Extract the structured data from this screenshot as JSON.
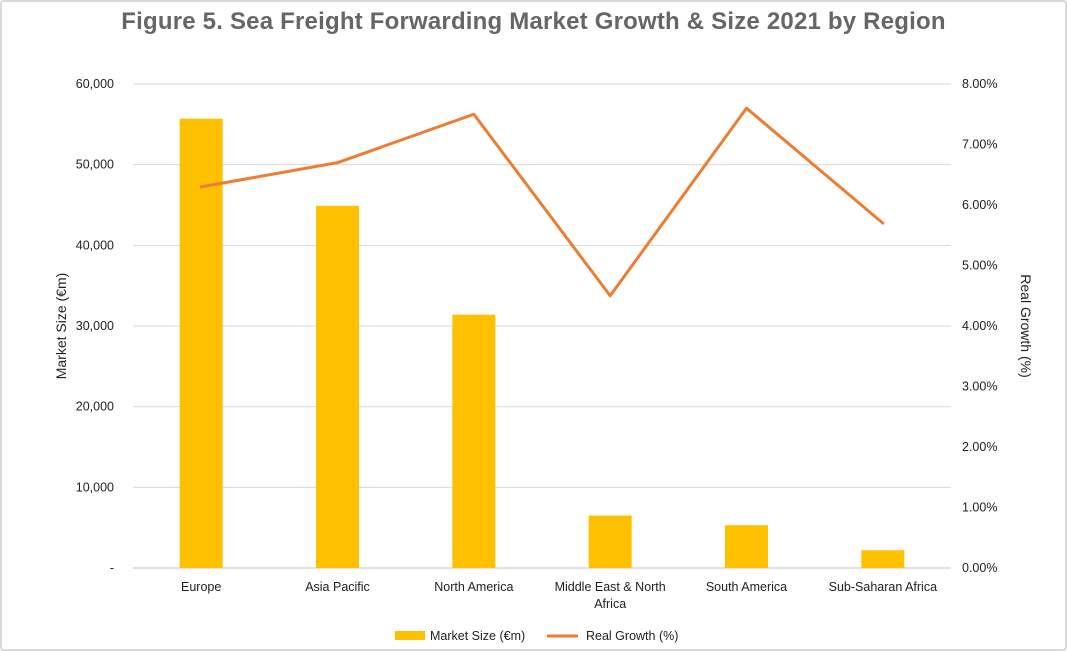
{
  "chart_data": {
    "type": "bar",
    "title": "Figure 5. Sea Freight Forwarding Market Growth & Size 2021 by Region",
    "categories": [
      "Europe",
      "Asia Pacific",
      "North America",
      "Middle East & North Africa",
      "South America",
      "Sub-Saharan Africa"
    ],
    "category_lines": [
      [
        "Europe"
      ],
      [
        "Asia Pacific"
      ],
      [
        "North America"
      ],
      [
        "Middle East & North",
        "Africa"
      ],
      [
        "South America"
      ],
      [
        "Sub-Saharan Africa"
      ]
    ],
    "series": [
      {
        "name": "Market Size (€m)",
        "type": "bar",
        "axis": "left",
        "color": "#FFC000",
        "values": [
          55700,
          44900,
          31400,
          6500,
          5300,
          2200
        ]
      },
      {
        "name": "Real Growth (%)",
        "type": "line",
        "axis": "right",
        "color": "#ED7D31",
        "values": [
          6.3,
          6.7,
          7.5,
          4.5,
          7.6,
          5.7
        ]
      }
    ],
    "y_left": {
      "label": "Market Size (€m)",
      "range": [
        0,
        60000
      ],
      "ticks": [
        "-",
        "10,000",
        "20,000",
        "30,000",
        "40,000",
        "50,000",
        "60,000"
      ]
    },
    "y_right": {
      "label": "Real Growth (%)",
      "range": [
        0,
        8
      ],
      "ticks": [
        "0.00%",
        "1.00%",
        "2.00%",
        "3.00%",
        "4.00%",
        "5.00%",
        "6.00%",
        "7.00%",
        "8.00%"
      ]
    },
    "grid": true,
    "legend_position": "bottom"
  }
}
